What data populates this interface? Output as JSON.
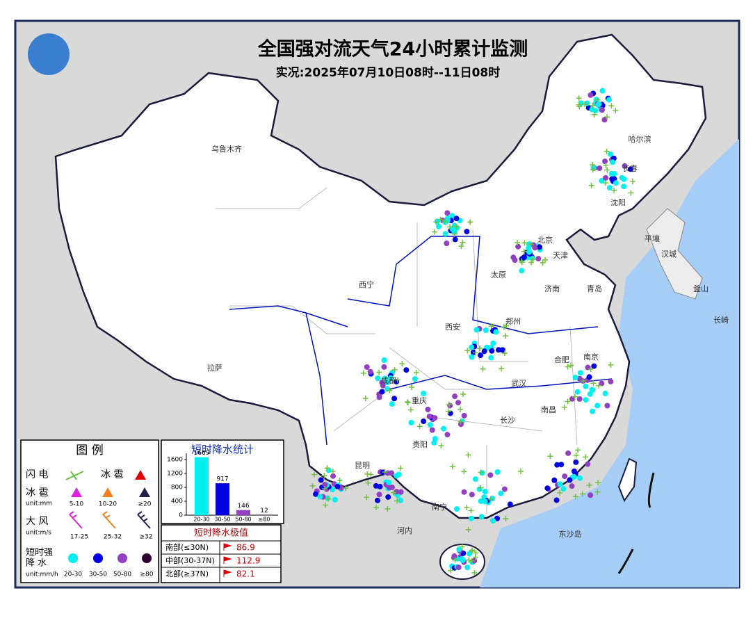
{
  "header": {
    "title": "全国强对流天气24小时累计监测",
    "subtitle": "实况:2025年07月10日08时--11日08时"
  },
  "cities": [
    "乌鲁木齐",
    "哈尔滨",
    "长春",
    "沈阳",
    "平壤",
    "汉城",
    "釜山",
    "长崎",
    "西宁",
    "北京",
    "天津",
    "太原",
    "济南",
    "青岛",
    "郑州",
    "西安",
    "合肥",
    "南京",
    "武汉",
    "成都",
    "重庆",
    "长沙",
    "南昌",
    "贵阳",
    "昆明",
    "南宁",
    "拉萨",
    "河内",
    "东沙岛"
  ],
  "legend": {
    "title": "图 例",
    "lightning": "闪 电",
    "hail": "冰 雹",
    "hail_size": "冰 雹",
    "hail_unit": "unit:mm",
    "hail_levels": [
      "5-10",
      "10-20",
      "≥20"
    ],
    "wind": "大 风",
    "wind_unit": "unit:m/s",
    "wind_levels": [
      "17-25",
      "25-32",
      "≥32"
    ],
    "rain": [
      "短时强",
      "降 水"
    ],
    "rain_unit": "unit:mm/h",
    "rain_levels": [
      "20-30",
      "30-50",
      "50-80",
      "≥80"
    ]
  },
  "inset_chart": {
    "type": "bar",
    "title": "短时降水统计",
    "categories": [
      "20-30",
      "30-50",
      "50-80",
      "≥80"
    ],
    "values": [
      1669,
      917,
      146,
      12
    ],
    "colors": [
      "#00f0f0",
      "#0000e0",
      "#9040c0",
      "#300030"
    ],
    "ylim": [
      0,
      1700
    ],
    "yticks": [
      0,
      400,
      800,
      1200,
      1600
    ]
  },
  "extremes": {
    "title": "短时降水极值",
    "rows": [
      [
        "南部(≤30N)",
        86.9
      ],
      [
        "中部(30-37N)",
        112.9
      ],
      [
        "北部(≥37N)",
        82.1
      ]
    ]
  }
}
